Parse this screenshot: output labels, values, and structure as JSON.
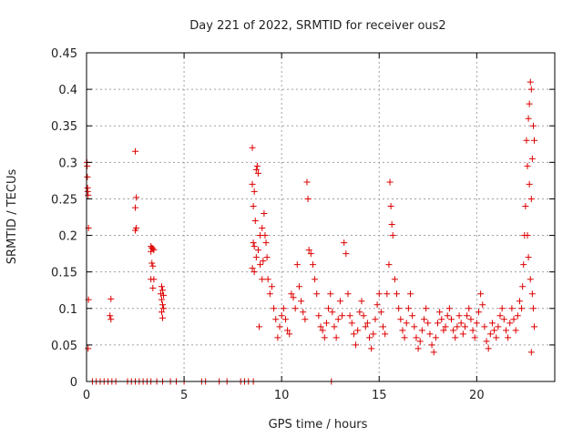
{
  "colors": {
    "series": "#dd0000",
    "frame": "#000000",
    "grid": "#a0a0a0",
    "text": "#222222",
    "background": "#ffffff"
  },
  "chart_data": {
    "type": "scatter",
    "title": "Day 221 of 2022, SRMTID for receiver ous2",
    "xlabel": "GPS time / hours",
    "ylabel": "SRMTID / TECUs",
    "xlim": [
      0,
      24
    ],
    "ylim": [
      0,
      0.45
    ],
    "xticks": [
      0,
      5,
      10,
      15,
      20
    ],
    "xtick_labels": [
      "0",
      "5",
      "10",
      "15",
      "20"
    ],
    "yticks": [
      0,
      0.05,
      0.1,
      0.15,
      0.2,
      0.25,
      0.3,
      0.35,
      0.4,
      0.45
    ],
    "ytick_labels": [
      "0",
      "0.05",
      "0.1",
      "0.15",
      "0.2",
      "0.25",
      "0.3",
      "0.35",
      "0.4",
      "0.45"
    ],
    "grid": true,
    "marker": "+",
    "series": [
      {
        "name": "SRMTID",
        "points": [
          [
            0.02,
            0.3
          ],
          [
            0.03,
            0.295
          ],
          [
            0.04,
            0.28
          ],
          [
            0.05,
            0.265
          ],
          [
            0.06,
            0.26
          ],
          [
            0.08,
            0.255
          ],
          [
            0.1,
            0.21
          ],
          [
            0.1,
            0.112
          ],
          [
            0.08,
            0.045
          ],
          [
            1.25,
            0.113
          ],
          [
            1.2,
            0.09
          ],
          [
            1.25,
            0.085
          ],
          [
            2.5,
            0.315
          ],
          [
            2.55,
            0.252
          ],
          [
            2.5,
            0.238
          ],
          [
            2.55,
            0.21
          ],
          [
            2.5,
            0.207
          ],
          [
            3.3,
            0.185
          ],
          [
            3.35,
            0.183
          ],
          [
            3.4,
            0.182
          ],
          [
            3.3,
            0.178
          ],
          [
            3.45,
            0.18
          ],
          [
            3.35,
            0.162
          ],
          [
            3.4,
            0.158
          ],
          [
            3.3,
            0.14
          ],
          [
            3.45,
            0.14
          ],
          [
            3.4,
            0.128
          ],
          [
            3.85,
            0.13
          ],
          [
            3.9,
            0.125
          ],
          [
            3.8,
            0.12
          ],
          [
            3.95,
            0.118
          ],
          [
            3.85,
            0.112
          ],
          [
            3.9,
            0.105
          ],
          [
            3.95,
            0.1
          ],
          [
            3.85,
            0.095
          ],
          [
            3.9,
            0.087
          ],
          [
            8.5,
            0.32
          ],
          [
            8.6,
            0.26
          ],
          [
            8.55,
            0.24
          ],
          [
            8.65,
            0.22
          ],
          [
            8.7,
            0.29
          ],
          [
            8.75,
            0.295
          ],
          [
            8.8,
            0.285
          ],
          [
            8.5,
            0.27
          ],
          [
            8.55,
            0.19
          ],
          [
            8.6,
            0.185
          ],
          [
            8.7,
            0.17
          ],
          [
            8.5,
            0.155
          ],
          [
            8.6,
            0.15
          ],
          [
            8.8,
            0.18
          ],
          [
            8.9,
            0.2
          ],
          [
            9.0,
            0.21
          ],
          [
            9.1,
            0.23
          ],
          [
            9.2,
            0.19
          ],
          [
            8.85,
            0.075
          ],
          [
            8.9,
            0.16
          ],
          [
            9.0,
            0.14
          ],
          [
            9.05,
            0.165
          ],
          [
            9.15,
            0.2
          ],
          [
            9.25,
            0.17
          ],
          [
            9.3,
            0.14
          ],
          [
            9.4,
            0.12
          ],
          [
            9.5,
            0.13
          ],
          [
            9.6,
            0.1
          ],
          [
            9.7,
            0.085
          ],
          [
            9.8,
            0.06
          ],
          [
            9.9,
            0.075
          ],
          [
            10.0,
            0.09
          ],
          [
            10.1,
            0.1
          ],
          [
            10.2,
            0.085
          ],
          [
            10.3,
            0.07
          ],
          [
            10.4,
            0.065
          ],
          [
            10.5,
            0.12
          ],
          [
            10.6,
            0.115
          ],
          [
            10.7,
            0.1
          ],
          [
            10.8,
            0.16
          ],
          [
            10.9,
            0.13
          ],
          [
            11.0,
            0.11
          ],
          [
            11.1,
            0.095
          ],
          [
            11.2,
            0.085
          ],
          [
            11.3,
            0.273
          ],
          [
            11.35,
            0.25
          ],
          [
            11.4,
            0.18
          ],
          [
            11.5,
            0.175
          ],
          [
            11.6,
            0.16
          ],
          [
            11.7,
            0.14
          ],
          [
            11.8,
            0.12
          ],
          [
            11.9,
            0.09
          ],
          [
            12.0,
            0.075
          ],
          [
            12.1,
            0.07
          ],
          [
            12.2,
            0.06
          ],
          [
            12.3,
            0.08
          ],
          [
            12.4,
            0.1
          ],
          [
            12.5,
            0.12
          ],
          [
            12.6,
            0.095
          ],
          [
            12.7,
            0.075
          ],
          [
            12.8,
            0.06
          ],
          [
            12.9,
            0.085
          ],
          [
            13.0,
            0.11
          ],
          [
            13.1,
            0.09
          ],
          [
            13.2,
            0.19
          ],
          [
            13.3,
            0.175
          ],
          [
            13.4,
            0.12
          ],
          [
            13.5,
            0.09
          ],
          [
            13.6,
            0.08
          ],
          [
            13.7,
            0.065
          ],
          [
            13.8,
            0.05
          ],
          [
            13.9,
            0.07
          ],
          [
            14.0,
            0.095
          ],
          [
            14.1,
            0.11
          ],
          [
            14.2,
            0.09
          ],
          [
            14.3,
            0.075
          ],
          [
            14.4,
            0.08
          ],
          [
            14.5,
            0.06
          ],
          [
            14.6,
            0.045
          ],
          [
            14.7,
            0.065
          ],
          [
            14.8,
            0.085
          ],
          [
            14.9,
            0.105
          ],
          [
            15.0,
            0.12
          ],
          [
            15.1,
            0.095
          ],
          [
            15.2,
            0.075
          ],
          [
            15.3,
            0.065
          ],
          [
            15.4,
            0.12
          ],
          [
            15.5,
            0.16
          ],
          [
            15.55,
            0.273
          ],
          [
            15.6,
            0.24
          ],
          [
            15.65,
            0.215
          ],
          [
            15.7,
            0.2
          ],
          [
            15.8,
            0.14
          ],
          [
            15.9,
            0.12
          ],
          [
            16.0,
            0.1
          ],
          [
            16.1,
            0.085
          ],
          [
            16.2,
            0.07
          ],
          [
            16.3,
            0.06
          ],
          [
            16.4,
            0.08
          ],
          [
            16.5,
            0.1
          ],
          [
            16.6,
            0.12
          ],
          [
            16.7,
            0.09
          ],
          [
            16.8,
            0.075
          ],
          [
            16.9,
            0.06
          ],
          [
            17.0,
            0.045
          ],
          [
            17.1,
            0.055
          ],
          [
            17.2,
            0.07
          ],
          [
            17.3,
            0.085
          ],
          [
            17.4,
            0.1
          ],
          [
            17.5,
            0.08
          ],
          [
            17.6,
            0.065
          ],
          [
            17.7,
            0.05
          ],
          [
            17.8,
            0.04
          ],
          [
            17.9,
            0.06
          ],
          [
            18.0,
            0.08
          ],
          [
            18.1,
            0.095
          ],
          [
            18.2,
            0.085
          ],
          [
            18.3,
            0.07
          ],
          [
            18.4,
            0.075
          ],
          [
            18.5,
            0.09
          ],
          [
            18.6,
            0.1
          ],
          [
            18.7,
            0.085
          ],
          [
            18.8,
            0.07
          ],
          [
            18.9,
            0.06
          ],
          [
            19.0,
            0.075
          ],
          [
            19.1,
            0.09
          ],
          [
            19.2,
            0.08
          ],
          [
            19.3,
            0.065
          ],
          [
            19.4,
            0.075
          ],
          [
            19.5,
            0.09
          ],
          [
            19.6,
            0.1
          ],
          [
            19.7,
            0.085
          ],
          [
            19.8,
            0.07
          ],
          [
            19.9,
            0.06
          ],
          [
            20.0,
            0.08
          ],
          [
            20.1,
            0.095
          ],
          [
            20.2,
            0.12
          ],
          [
            20.3,
            0.105
          ],
          [
            20.4,
            0.075
          ],
          [
            20.5,
            0.055
          ],
          [
            20.6,
            0.045
          ],
          [
            20.7,
            0.065
          ],
          [
            20.8,
            0.08
          ],
          [
            20.9,
            0.07
          ],
          [
            21.0,
            0.06
          ],
          [
            21.1,
            0.075
          ],
          [
            21.2,
            0.09
          ],
          [
            21.3,
            0.1
          ],
          [
            21.4,
            0.085
          ],
          [
            21.5,
            0.07
          ],
          [
            21.6,
            0.06
          ],
          [
            21.7,
            0.08
          ],
          [
            21.8,
            0.1
          ],
          [
            21.9,
            0.085
          ],
          [
            22.0,
            0.07
          ],
          [
            22.1,
            0.09
          ],
          [
            22.2,
            0.11
          ],
          [
            22.3,
            0.1
          ],
          [
            22.35,
            0.13
          ],
          [
            22.4,
            0.16
          ],
          [
            22.45,
            0.2
          ],
          [
            22.5,
            0.24
          ],
          [
            22.55,
            0.33
          ],
          [
            22.6,
            0.295
          ],
          [
            22.65,
            0.36
          ],
          [
            22.7,
            0.38
          ],
          [
            22.75,
            0.41
          ],
          [
            22.8,
            0.4
          ],
          [
            22.85,
            0.305
          ],
          [
            22.9,
            0.35
          ],
          [
            22.95,
            0.33
          ],
          [
            22.7,
            0.27
          ],
          [
            22.8,
            0.25
          ],
          [
            22.6,
            0.2
          ],
          [
            22.65,
            0.17
          ],
          [
            22.75,
            0.14
          ],
          [
            22.85,
            0.12
          ],
          [
            22.9,
            0.1
          ],
          [
            22.95,
            0.075
          ],
          [
            22.8,
            0.04
          ],
          [
            0.3,
            0
          ],
          [
            0.5,
            0
          ],
          [
            0.7,
            0
          ],
          [
            0.9,
            0
          ],
          [
            1.1,
            0
          ],
          [
            1.3,
            0
          ],
          [
            1.5,
            0
          ],
          [
            2.1,
            0
          ],
          [
            2.3,
            0
          ],
          [
            2.5,
            0
          ],
          [
            2.7,
            0
          ],
          [
            2.9,
            0
          ],
          [
            3.1,
            0
          ],
          [
            3.3,
            0
          ],
          [
            3.6,
            0
          ],
          [
            3.9,
            0
          ],
          [
            4.3,
            0
          ],
          [
            4.6,
            0
          ],
          [
            5.0,
            0
          ],
          [
            5.9,
            0
          ],
          [
            6.1,
            0
          ],
          [
            6.8,
            0
          ],
          [
            7.2,
            0
          ],
          [
            7.9,
            0
          ],
          [
            8.1,
            0
          ],
          [
            8.3,
            0
          ],
          [
            8.55,
            0
          ],
          [
            12.55,
            0
          ]
        ]
      }
    ]
  }
}
